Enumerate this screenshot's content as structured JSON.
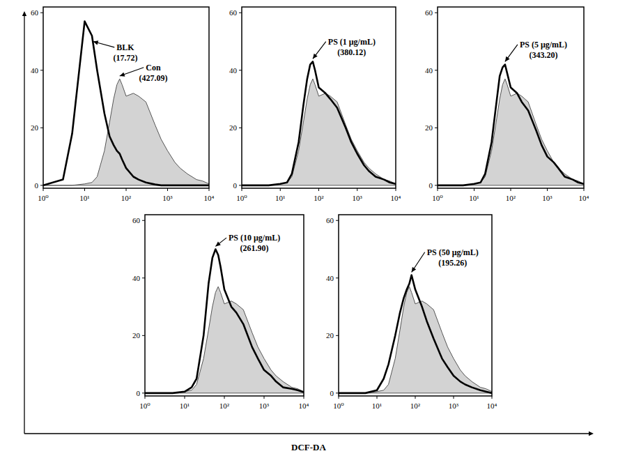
{
  "chart_data": [
    {
      "type": "line",
      "log": "x",
      "xlim": [
        1,
        10000
      ],
      "ylim": [
        -1,
        62
      ],
      "xticks": [
        {
          "value": 1,
          "label": "10⁰"
        },
        {
          "value": 10,
          "label": "10¹"
        },
        {
          "value": 100,
          "label": "10²"
        },
        {
          "value": 1000,
          "label": "10³"
        },
        {
          "value": 10000,
          "label": "10⁴"
        }
      ],
      "yticks": [
        0,
        20,
        40,
        60
      ],
      "x": [
        1,
        3,
        5,
        10,
        15,
        20,
        30,
        40,
        50,
        60,
        70,
        80,
        100,
        150,
        200,
        300,
        500,
        700,
        1000,
        1500,
        2000,
        3000,
        5000,
        7000,
        10000
      ],
      "series": [
        {
          "type": "area",
          "color": "#d3d3d3",
          "values": [
            0,
            0,
            0,
            0.5,
            1,
            3,
            12,
            22,
            30,
            35,
            37,
            35,
            31,
            32,
            31,
            29,
            21,
            16,
            12,
            8,
            6,
            4,
            2,
            1.5,
            0.5
          ]
        },
        {
          "type": "line",
          "color": "#000000",
          "values": [
            0,
            2,
            18,
            57,
            52,
            40,
            25,
            17,
            14,
            12,
            11,
            9,
            6,
            3,
            2,
            1,
            0.3,
            0,
            0,
            0,
            0,
            0,
            0,
            0,
            0
          ]
        }
      ],
      "annotations": [
        {
          "text": "BLK",
          "label": "(17.72)",
          "x": 16,
          "y": 50,
          "text_x": 96,
          "text_y": 47
        },
        {
          "text": "Con",
          "label": "(427.09)",
          "x": 70,
          "y": 38,
          "text_x": 452,
          "text_y": 40
        }
      ]
    },
    {
      "type": "line",
      "log": "x",
      "xlim": [
        1,
        10000
      ],
      "ylim": [
        -1,
        62
      ],
      "xticks": [
        {
          "value": 1,
          "label": "10⁰"
        },
        {
          "value": 10,
          "label": "10¹"
        },
        {
          "value": 100,
          "label": "10²"
        },
        {
          "value": 1000,
          "label": "10³"
        },
        {
          "value": 10000,
          "label": "10⁴"
        }
      ],
      "yticks": [
        0,
        20,
        40,
        60
      ],
      "x": [
        1,
        3,
        5,
        10,
        15,
        20,
        30,
        40,
        50,
        60,
        70,
        80,
        100,
        150,
        200,
        300,
        500,
        700,
        1000,
        1500,
        2000,
        3000,
        5000,
        7000,
        10000
      ],
      "series": [
        {
          "type": "area",
          "color": "#d3d3d3",
          "values": [
            0,
            0,
            0,
            0.5,
            1,
            3,
            12,
            22,
            30,
            35,
            37,
            35,
            31,
            32,
            31,
            29,
            21,
            16,
            12,
            8,
            6,
            4,
            2,
            1.5,
            0.5
          ]
        },
        {
          "type": "line",
          "color": "#000000",
          "values": [
            0,
            0,
            0,
            0.5,
            1,
            4,
            15,
            28,
            37,
            42,
            43,
            40,
            34,
            32,
            30,
            27,
            20,
            15,
            11,
            7,
            5,
            3,
            2,
            1,
            0.5
          ]
        }
      ],
      "annotations": [
        {
          "text": "PS (1 μg/mL)",
          "label": "(380.12)",
          "x": 70,
          "y": 44,
          "text_x": 720,
          "text_y": 49
        }
      ]
    },
    {
      "type": "line",
      "log": "x",
      "xlim": [
        1,
        10000
      ],
      "ylim": [
        -1,
        62
      ],
      "xticks": [
        {
          "value": 1,
          "label": "10⁰"
        },
        {
          "value": 10,
          "label": "10¹"
        },
        {
          "value": 100,
          "label": "10²"
        },
        {
          "value": 1000,
          "label": "10³"
        },
        {
          "value": 10000,
          "label": "10⁴"
        }
      ],
      "yticks": [
        0,
        20,
        40,
        60
      ],
      "x": [
        1,
        3,
        5,
        10,
        15,
        20,
        30,
        40,
        50,
        60,
        70,
        80,
        100,
        150,
        200,
        300,
        500,
        700,
        1000,
        1500,
        2000,
        3000,
        5000,
        7000,
        10000
      ],
      "series": [
        {
          "type": "area",
          "color": "#d3d3d3",
          "values": [
            0,
            0,
            0,
            0.5,
            1,
            3,
            12,
            22,
            30,
            35,
            37,
            35,
            31,
            32,
            31,
            29,
            21,
            16,
            12,
            8,
            6,
            4,
            2,
            1.5,
            0.5
          ]
        },
        {
          "type": "line",
          "color": "#000000",
          "values": [
            0,
            0,
            0,
            0.5,
            1,
            4,
            15,
            28,
            38,
            41,
            42,
            39,
            34,
            32,
            29,
            26,
            19,
            14,
            10,
            8,
            6,
            3,
            2,
            1,
            0.5
          ]
        }
      ],
      "annotations": [
        {
          "text": "PS (5 μg/mL)",
          "label": "(343.20)",
          "x": 70,
          "y": 43,
          "text_x": 785,
          "text_y": 48
        }
      ]
    },
    {
      "type": "line",
      "log": "x",
      "xlim": [
        1,
        10000
      ],
      "ylim": [
        -1,
        62
      ],
      "xticks": [
        {
          "value": 1,
          "label": "10⁰"
        },
        {
          "value": 10,
          "label": "10¹"
        },
        {
          "value": 100,
          "label": "10²"
        },
        {
          "value": 1000,
          "label": "10³"
        },
        {
          "value": 10000,
          "label": "10⁴"
        }
      ],
      "yticks": [
        0,
        20,
        40,
        60
      ],
      "x": [
        1,
        3,
        5,
        10,
        15,
        20,
        30,
        40,
        50,
        60,
        70,
        80,
        100,
        150,
        200,
        300,
        500,
        700,
        1000,
        1500,
        2000,
        3000,
        5000,
        7000,
        10000
      ],
      "series": [
        {
          "type": "area",
          "color": "#d3d3d3",
          "values": [
            0,
            0,
            0,
            0.5,
            1,
            3,
            12,
            22,
            30,
            35,
            37,
            35,
            31,
            32,
            31,
            29,
            21,
            16,
            12,
            8,
            6,
            4,
            2,
            1.5,
            0.5
          ]
        },
        {
          "type": "line",
          "color": "#000000",
          "values": [
            0,
            0,
            0,
            0.5,
            2,
            5,
            20,
            38,
            47,
            50,
            48,
            44,
            36,
            30,
            28,
            24,
            16,
            12,
            8,
            6,
            4,
            2,
            1.5,
            1,
            0.3
          ]
        }
      ],
      "annotations": [
        {
          "text": "PS (10 μg/mL)",
          "label": "(261.90)",
          "x": 60,
          "y": 51,
          "text_x": 570,
          "text_y": 53
        }
      ]
    },
    {
      "type": "line",
      "log": "x",
      "xlim": [
        1,
        10000
      ],
      "ylim": [
        -1,
        62
      ],
      "xticks": [
        {
          "value": 1,
          "label": "10⁰"
        },
        {
          "value": 10,
          "label": "10¹"
        },
        {
          "value": 100,
          "label": "10²"
        },
        {
          "value": 1000,
          "label": "10³"
        },
        {
          "value": 10000,
          "label": "10⁴"
        }
      ],
      "yticks": [
        0,
        20,
        40,
        60
      ],
      "x": [
        1,
        3,
        5,
        10,
        15,
        20,
        30,
        40,
        50,
        60,
        70,
        80,
        100,
        150,
        200,
        300,
        500,
        700,
        1000,
        1500,
        2000,
        3000,
        5000,
        7000,
        10000
      ],
      "series": [
        {
          "type": "area",
          "color": "#d3d3d3",
          "values": [
            0,
            0,
            0,
            0.5,
            1,
            3,
            12,
            22,
            30,
            35,
            37,
            35,
            31,
            32,
            31,
            29,
            21,
            16,
            12,
            8,
            6,
            4,
            2,
            1.5,
            0.5
          ]
        },
        {
          "type": "line",
          "color": "#000000",
          "values": [
            0,
            0,
            0,
            1,
            5,
            10,
            20,
            28,
            33,
            36,
            38,
            41,
            36,
            30,
            25,
            19,
            12,
            9,
            6,
            4,
            3,
            2,
            1,
            0.5,
            0
          ]
        }
      ],
      "annotations": [
        {
          "text": "PS (50 μg/mL)",
          "label": "(195.26)",
          "x": 80,
          "y": 42,
          "text_x": 950,
          "text_y": 48
        }
      ]
    }
  ],
  "figure": {
    "xlabel": "DCF-DA"
  }
}
